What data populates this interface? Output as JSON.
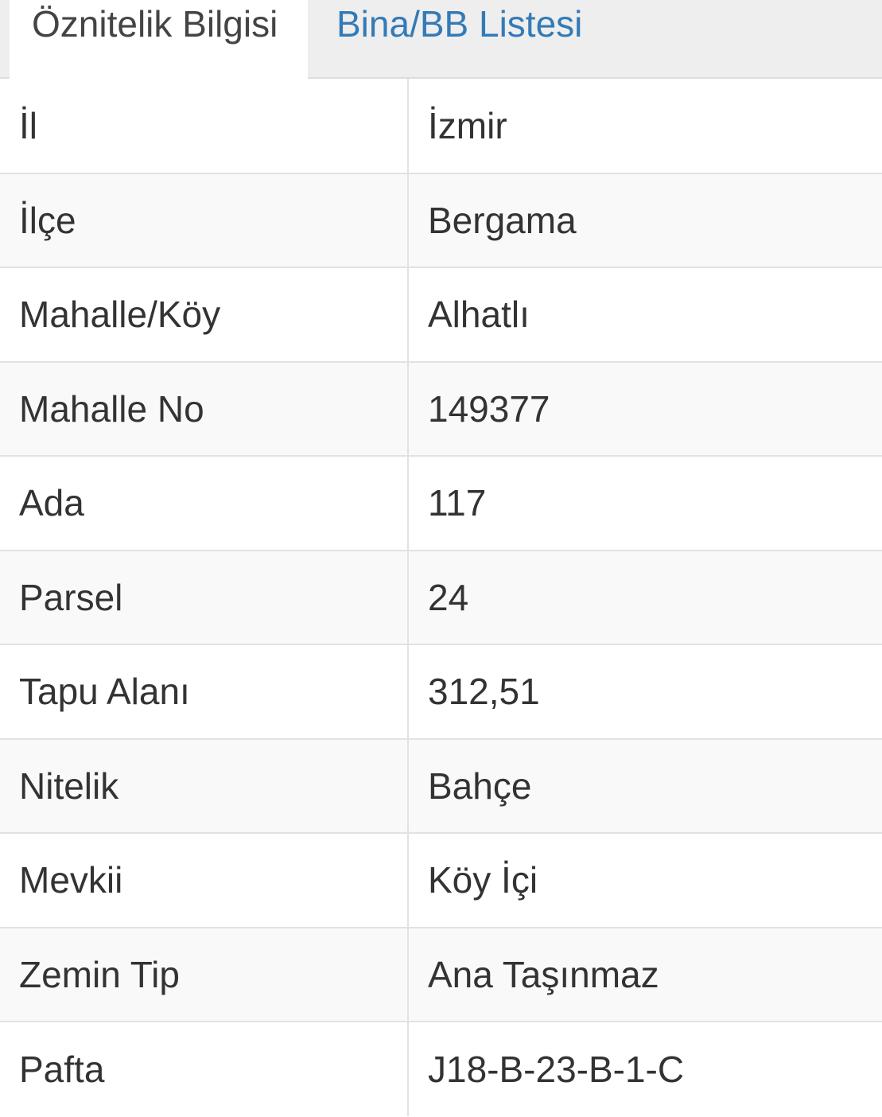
{
  "tabs": [
    {
      "label": "Öznitelik Bilgisi",
      "active": true
    },
    {
      "label": "Bina/BB Listesi",
      "active": false
    }
  ],
  "colors": {
    "tab_link": "#337ab7",
    "text": "#333333",
    "tab_bar": "#eeeeee",
    "row_alt": "#f9f9f9"
  },
  "rows": [
    {
      "key": "İl",
      "value": "İzmir"
    },
    {
      "key": "İlçe",
      "value": "Bergama"
    },
    {
      "key": "Mahalle/Köy",
      "value": "Alhatlı"
    },
    {
      "key": "Mahalle No",
      "value": "149377"
    },
    {
      "key": "Ada",
      "value": "117"
    },
    {
      "key": "Parsel",
      "value": "24"
    },
    {
      "key": "Tapu Alanı",
      "value": "312,51"
    },
    {
      "key": "Nitelik",
      "value": "Bahçe"
    },
    {
      "key": "Mevkii",
      "value": "Köy İçi"
    },
    {
      "key": "Zemin Tip",
      "value": "Ana Taşınmaz"
    },
    {
      "key": "Pafta",
      "value": "J18-B-23-B-1-C"
    }
  ]
}
